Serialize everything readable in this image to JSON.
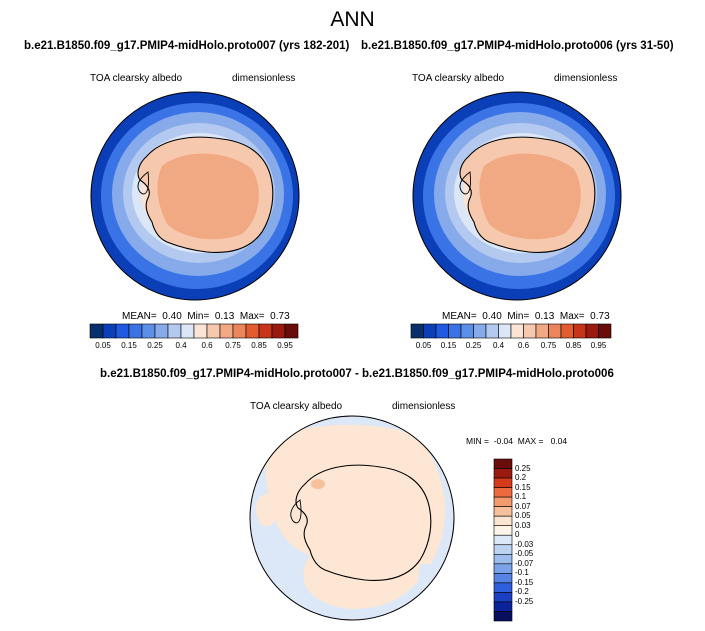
{
  "page": {
    "title": "ANN"
  },
  "panels": [
    {
      "case": "b.e21.B1850.f09_g17.PMIP4-midHolo.proto007 (yrs 182-201)",
      "variable": "TOA clearsky albedo",
      "units": "dimensionless",
      "stats": {
        "mean_label": "MEAN=",
        "mean": "0.40",
        "min_label": "Min=",
        "min": "0.13",
        "max_label": "Max=",
        "max": "0.73"
      }
    },
    {
      "case": "b.e21.B1850.f09_g17.PMIP4-midHolo.proto006 (yrs 31-50)",
      "variable": "TOA clearsky albedo",
      "units": "dimensionless",
      "stats": {
        "mean_label": "MEAN=",
        "mean": "0.40",
        "min_label": "Min=",
        "min": "0.13",
        "max_label": "Max=",
        "max": "0.73"
      }
    }
  ],
  "field_colorbar": {
    "colors": [
      "#08306b",
      "#0b3fb8",
      "#1f5ae0",
      "#3a73e6",
      "#5b8fe8",
      "#87abea",
      "#b4c9f0",
      "#dbe6f6",
      "#fbe4d5",
      "#f6c9ae",
      "#f1a983",
      "#ec865a",
      "#e25b31",
      "#c8341a",
      "#9a1a10",
      "#6a0d0a"
    ],
    "labels": [
      "0.05",
      "0.15",
      "0.25",
      "0.4",
      "0.6",
      "0.75",
      "0.85",
      "0.95"
    ]
  },
  "difference": {
    "title": "b.e21.B1850.f09_g17.PMIP4-midHolo.proto007 - b.e21.B1850.f09_g17.PMIP4-midHolo.proto006",
    "variable": "TOA clearsky albedo",
    "units": "dimensionless",
    "stats": {
      "min_label": "MIN =",
      "min": "-0.04",
      "max_label": "MAX =",
      "max": "0.04"
    },
    "colorbar": {
      "colors": [
        "#6a0d0a",
        "#9a1a10",
        "#d63a1d",
        "#ec6a3d",
        "#f19b6f",
        "#f6c09d",
        "#fbe4d0",
        "#fdf3e8",
        "#dce8f7",
        "#bcd3f2",
        "#9cbcee",
        "#7aa3ea",
        "#5584e4",
        "#2f5fdc",
        "#1a3fc0",
        "#0b239a",
        "#08105e"
      ],
      "labels": [
        "0.25",
        "0.2",
        "0.15",
        "0.1",
        "0.07",
        "0.05",
        "0.03",
        "0",
        "-0.03",
        "-0.05",
        "-0.07",
        "-0.1",
        "-0.15",
        "-0.2",
        "-0.25"
      ]
    }
  }
}
